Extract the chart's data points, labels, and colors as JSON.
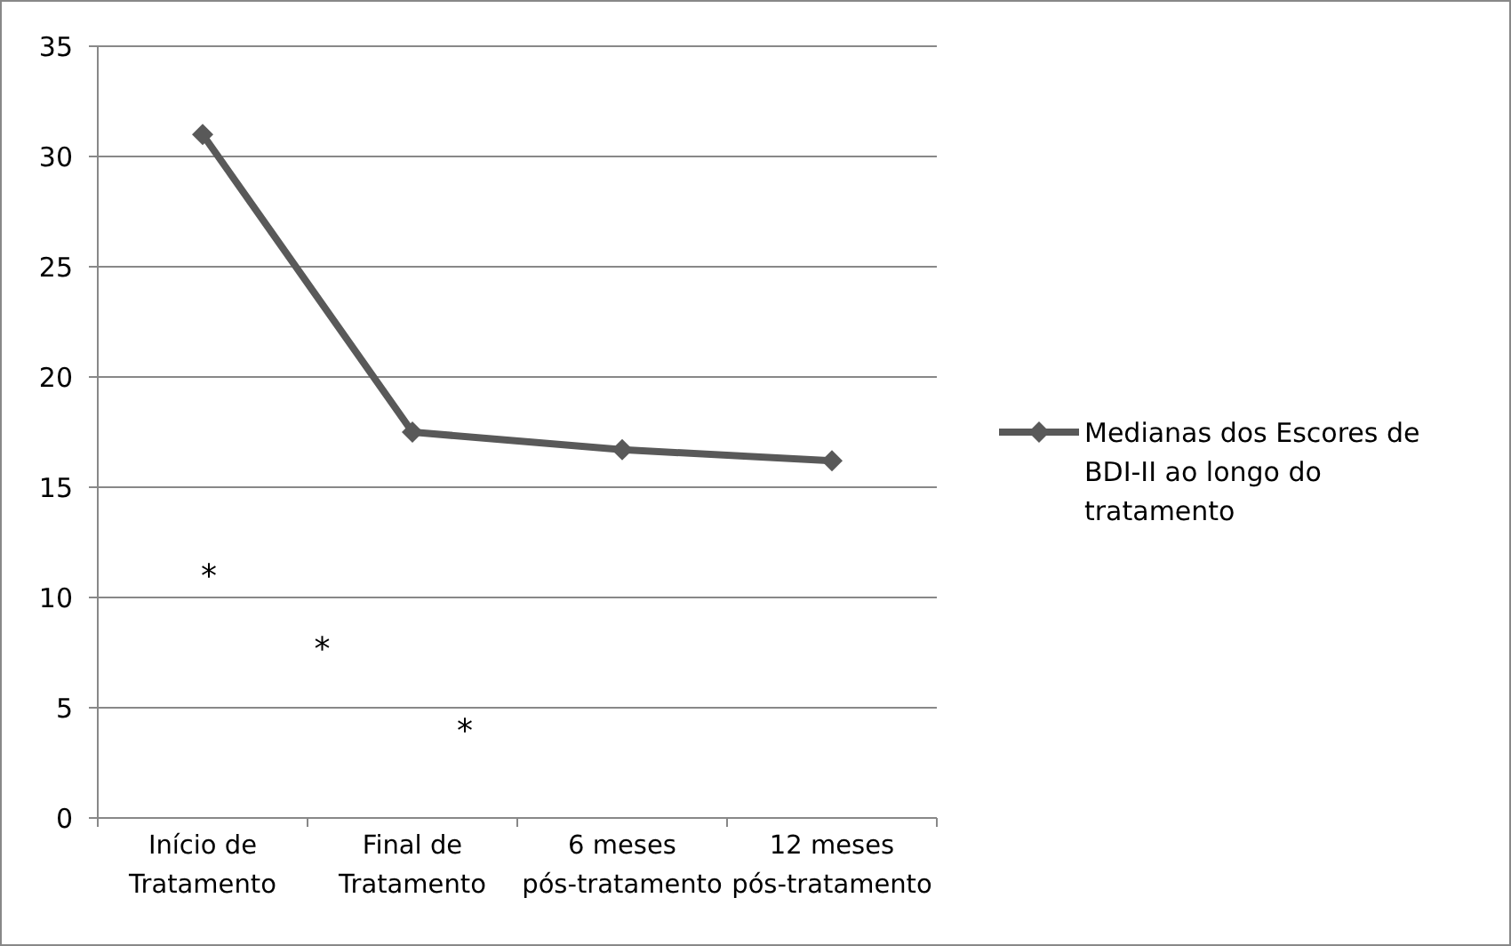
{
  "chart_data": {
    "type": "line",
    "categories": [
      "Início de Tratamento",
      "Final de Tratamento",
      "6 meses pós-tratamento",
      "12 meses pós-tratamento"
    ],
    "series": [
      {
        "name": "Medianas dos Escores de BDI-II ao longo do tratamento",
        "color": "#595959",
        "values": [
          31,
          17.5,
          16.7,
          16.2
        ]
      }
    ],
    "ylim": [
      0,
      35
    ],
    "yticks": [
      0,
      5,
      10,
      15,
      20,
      25,
      30,
      35
    ],
    "grid": "y",
    "legend": "right",
    "marker": "diamond",
    "line_style": "solid",
    "annotations": [
      "*",
      "*",
      "*"
    ]
  }
}
